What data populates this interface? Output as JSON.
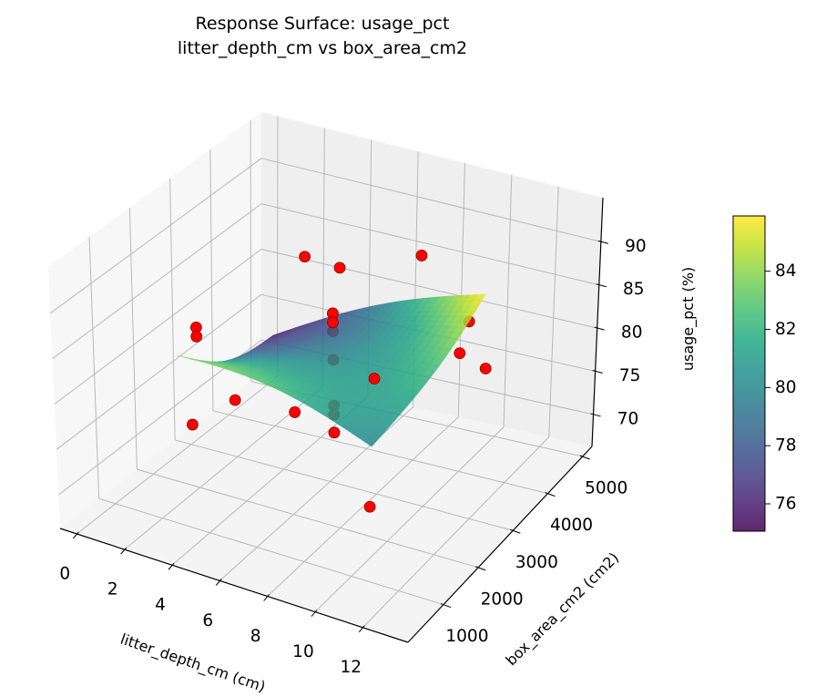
{
  "chart_data": {
    "type": "surface",
    "title": [
      "Response Surface: usage_pct",
      "litter_depth_cm vs box_area_cm2"
    ],
    "xlabel": "litter_depth_cm (cm)",
    "ylabel": "box_area_cm2 (cm2)",
    "zlabel": "usage_pct (%)",
    "xlim": [
      -0.7,
      13.9
    ],
    "ylim": [
      -20,
      5270
    ],
    "zlim": [
      66.3,
      95.1
    ],
    "xticks": [
      0,
      2,
      4,
      6,
      8,
      10,
      12
    ],
    "yticks": [
      1000,
      2000,
      3000,
      4000,
      5000
    ],
    "zticks": [
      70,
      75,
      80,
      85,
      90
    ],
    "grid": true,
    "scatter": {
      "color": "#ff0000",
      "edgecolor": "#8b0000",
      "points": [
        [
          3.4,
          3950,
          86.2
        ],
        [
          4.9,
          3950,
          86.0
        ],
        [
          8.4,
          3950,
          89.8
        ],
        [
          3.2,
          1300,
          87.3
        ],
        [
          3.2,
          1300,
          86.3
        ],
        [
          6.8,
          2625,
          87.0
        ],
        [
          6.8,
          2625,
          86.0
        ],
        [
          6.8,
          2625,
          85.0
        ],
        [
          6.8,
          2625,
          81.8
        ],
        [
          6.8,
          2625,
          76.7
        ],
        [
          6.8,
          2625,
          75.7
        ],
        [
          6.8,
          2625,
          73.7
        ],
        [
          9.2,
          4740,
          79.9
        ],
        [
          12.2,
          2625,
          86.6
        ],
        [
          13.3,
          2625,
          85.7
        ],
        [
          6.4,
          3950,
          74.6
        ],
        [
          0.7,
          2625,
          70.2
        ],
        [
          6.1,
          510,
          84.4
        ],
        [
          7.3,
          1300,
          81.2
        ],
        [
          8.3,
          2625,
          66.5
        ]
      ]
    },
    "surface": {
      "colormap": "viridis",
      "alpha": 0.85,
      "z_grid": [
        [
          84.0,
          83.5,
          82.5,
          81.2,
          80.0
        ],
        [
          82.0,
          81.5,
          81.0,
          81.0,
          81.2
        ],
        [
          80.0,
          79.5,
          79.8,
          80.8,
          82.5
        ],
        [
          77.8,
          77.8,
          79.0,
          81.2,
          84.2
        ],
        [
          75.6,
          77.0,
          79.5,
          82.8,
          85.9
        ]
      ]
    },
    "colorbar": {
      "range": [
        75.06,
        85.9
      ],
      "ticks": [
        76,
        78,
        80,
        82,
        84
      ]
    }
  }
}
